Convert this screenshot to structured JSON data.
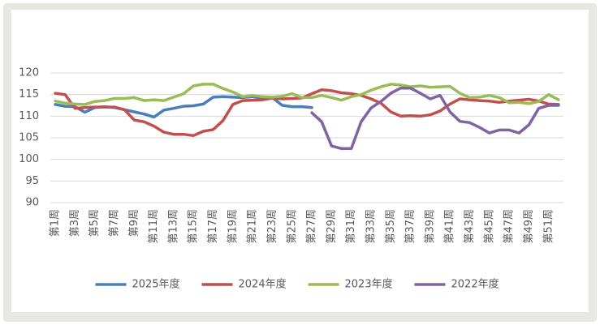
{
  "chart_data": {
    "type": "line",
    "categories": [
      "第1周",
      null,
      "第3周",
      null,
      "第5周",
      null,
      "第7周",
      null,
      "第9周",
      null,
      "第11周",
      null,
      "第13周",
      null,
      "第15周",
      null,
      "第17周",
      null,
      "第19周",
      null,
      "第21周",
      null,
      "第23周",
      null,
      "第25周",
      null,
      "第27周",
      null,
      "第29周",
      null,
      "第31周",
      null,
      "第33周",
      null,
      "第35周",
      null,
      "第37周",
      null,
      "第39周",
      null,
      "第41周",
      null,
      "第43周",
      null,
      "第45周",
      null,
      "第47周",
      null,
      "第49周",
      null,
      "第51周",
      null
    ],
    "series": [
      {
        "name": "2025年度",
        "color": "#4a7ebb",
        "values": [
          112.7,
          112.3,
          112.2,
          110.9,
          112.0,
          112.2,
          112.0,
          111.5,
          111.0,
          110.5,
          109.8,
          111.4,
          111.8,
          112.3,
          112.4,
          112.8,
          114.4,
          114.5,
          114.4,
          114.3,
          114.5,
          114.2,
          114.3,
          112.5,
          112.2,
          112.2,
          112.0,
          null,
          null,
          null,
          null,
          null,
          null,
          null,
          null,
          null,
          null,
          null,
          null,
          null,
          null,
          null,
          null,
          null,
          null,
          null,
          null,
          null,
          null,
          null,
          null,
          null
        ]
      },
      {
        "name": "2024年度",
        "color": "#c0504d",
        "values": [
          115.3,
          115.0,
          111.8,
          112.0,
          112.1,
          112.1,
          112.1,
          111.5,
          109.1,
          108.7,
          107.7,
          106.3,
          105.8,
          105.8,
          105.5,
          106.5,
          106.9,
          109.0,
          112.7,
          113.6,
          113.7,
          113.8,
          114.2,
          114.0,
          114.1,
          114.2,
          115.2,
          116.1,
          115.9,
          115.4,
          115.2,
          114.8,
          114.0,
          113.0,
          111.0,
          110.0,
          110.1,
          110.0,
          110.3,
          111.2,
          112.8,
          114.0,
          113.8,
          113.6,
          113.5,
          113.2,
          113.5,
          113.7,
          113.9,
          113.5,
          112.8,
          112.7
        ]
      },
      {
        "name": "2023年度",
        "color": "#9bbb59",
        "values": [
          113.5,
          113.0,
          112.8,
          112.7,
          113.4,
          113.6,
          114.1,
          114.1,
          114.3,
          113.6,
          113.8,
          113.6,
          114.4,
          115.2,
          117.0,
          117.4,
          117.4,
          116.4,
          115.6,
          114.5,
          114.8,
          114.5,
          114.4,
          114.6,
          115.2,
          114.3,
          114.3,
          114.8,
          114.3,
          113.7,
          114.5,
          115.0,
          116.0,
          116.8,
          117.4,
          117.2,
          116.8,
          117.0,
          116.7,
          116.8,
          116.9,
          115.3,
          114.3,
          114.4,
          114.8,
          114.3,
          113.1,
          113.2,
          112.9,
          113.4,
          115.0,
          113.8
        ]
      },
      {
        "name": "2022年度",
        "color": "#8064a2",
        "values": [
          null,
          null,
          null,
          null,
          null,
          null,
          null,
          null,
          null,
          null,
          null,
          null,
          null,
          null,
          null,
          null,
          null,
          null,
          null,
          null,
          null,
          null,
          null,
          null,
          null,
          null,
          110.8,
          108.7,
          103.1,
          102.5,
          102.5,
          108.7,
          111.9,
          113.4,
          115.3,
          116.5,
          116.5,
          115.3,
          114.0,
          114.8,
          111.0,
          108.8,
          108.5,
          107.4,
          106.1,
          106.8,
          106.8,
          106.1,
          108.0,
          111.8,
          112.5,
          112.5
        ]
      }
    ],
    "ylim": [
      90,
      120
    ],
    "yticks": [
      90,
      95,
      100,
      105,
      110,
      115,
      120
    ],
    "grid": true,
    "legend": "bottom"
  }
}
